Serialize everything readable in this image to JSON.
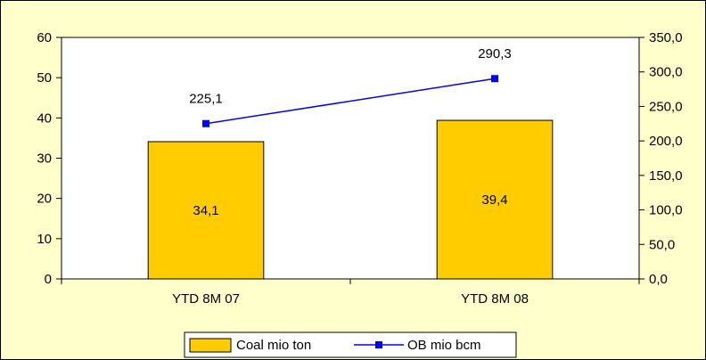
{
  "chart_data": {
    "type": "bar",
    "categories": [
      "YTD 8M 07",
      "YTD 8M 08"
    ],
    "series": [
      {
        "name": "Coal mio ton",
        "type": "bar",
        "axis": "left",
        "values": [
          34.1,
          39.4
        ],
        "labels": [
          "34,1",
          "39,4"
        ],
        "color": "#ffcc00"
      },
      {
        "name": "OB mio bcm",
        "type": "line",
        "axis": "right",
        "values": [
          225.1,
          290.3
        ],
        "labels": [
          "225,1",
          "290,3"
        ],
        "color": "#0000ff"
      }
    ],
    "y_left": {
      "ylim": [
        0,
        60
      ],
      "ticks": [
        0,
        10,
        20,
        30,
        40,
        50,
        60
      ],
      "tick_labels": [
        "0",
        "10",
        "20",
        "30",
        "40",
        "50",
        "60"
      ]
    },
    "y_right": {
      "ylim": [
        0,
        350
      ],
      "ticks": [
        0,
        50,
        100,
        150,
        200,
        250,
        300,
        350
      ],
      "tick_labels": [
        "0,0",
        "50,0",
        "100,0",
        "150,0",
        "200,0",
        "250,0",
        "300,0",
        "350,0"
      ]
    },
    "grid": false,
    "legend": "bottom",
    "background": "#ffffcc",
    "plot_background": "#ffffff"
  }
}
